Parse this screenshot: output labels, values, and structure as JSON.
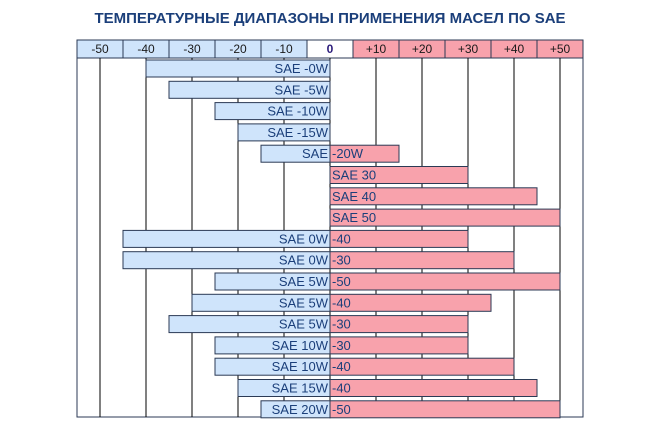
{
  "chart_data": {
    "type": "bar",
    "title": "ТЕМПЕРАТУРНЫЕ ДИАПАЗОНЫ ПРИМЕНЕНИЯ МАСЕЛ ПО SAE",
    "x_ticks": [
      {
        "value": -50,
        "label": "-50"
      },
      {
        "value": -40,
        "label": "-40"
      },
      {
        "value": -30,
        "label": "-30"
      },
      {
        "value": -20,
        "label": "-20"
      },
      {
        "value": -10,
        "label": "-10"
      },
      {
        "value": 0,
        "label": "0"
      },
      {
        "value": 10,
        "label": "+10"
      },
      {
        "value": 20,
        "label": "+20"
      },
      {
        "value": 30,
        "label": "+30"
      },
      {
        "value": 40,
        "label": "+40"
      },
      {
        "value": 50,
        "label": "+50"
      }
    ],
    "xlim": [
      -55,
      55
    ],
    "unit": "°C",
    "grid": true,
    "colors": {
      "negative": "#cfe4fb",
      "positive": "#f8a2ac",
      "border": "#2b3a55",
      "label": "#1b3f7a",
      "tick_zero": "#2a1a7a"
    },
    "bars": [
      {
        "left_label": "SAE -0W",
        "right_label": "",
        "min": -40,
        "max": 0
      },
      {
        "left_label": "SAE -5W",
        "right_label": "",
        "min": -35,
        "max": 0
      },
      {
        "left_label": "SAE -10W",
        "right_label": "",
        "min": -25,
        "max": 0
      },
      {
        "left_label": "SAE -15W",
        "right_label": "",
        "min": -20,
        "max": 0
      },
      {
        "left_label": "SAE ",
        "right_label": "-20W",
        "min": -15,
        "max": 15
      },
      {
        "left_label": "",
        "right_label": "SAE 30",
        "min": 0,
        "max": 30
      },
      {
        "left_label": "",
        "right_label": "SAE 40",
        "min": 0,
        "max": 45
      },
      {
        "left_label": "",
        "right_label": "SAE 50",
        "min": 0,
        "max": 50
      },
      {
        "left_label": "SAE 0W",
        "right_label": "-40",
        "min": -45,
        "max": 30
      },
      {
        "left_label": "SAE 0W",
        "right_label": "-30",
        "min": -45,
        "max": 40
      },
      {
        "left_label": "SAE 5W",
        "right_label": "-50",
        "min": -25,
        "max": 50
      },
      {
        "left_label": "SAE 5W",
        "right_label": "-40",
        "min": -30,
        "max": 35
      },
      {
        "left_label": "SAE 5W",
        "right_label": "-30",
        "min": -35,
        "max": 30
      },
      {
        "left_label": "SAE 10W",
        "right_label": "-30",
        "min": -25,
        "max": 30
      },
      {
        "left_label": "SAE 10W",
        "right_label": "-40",
        "min": -25,
        "max": 40
      },
      {
        "left_label": "SAE 15W",
        "right_label": "-40",
        "min": -20,
        "max": 45
      },
      {
        "left_label": "SAE 20W",
        "right_label": "-50",
        "min": -15,
        "max": 50
      }
    ]
  }
}
